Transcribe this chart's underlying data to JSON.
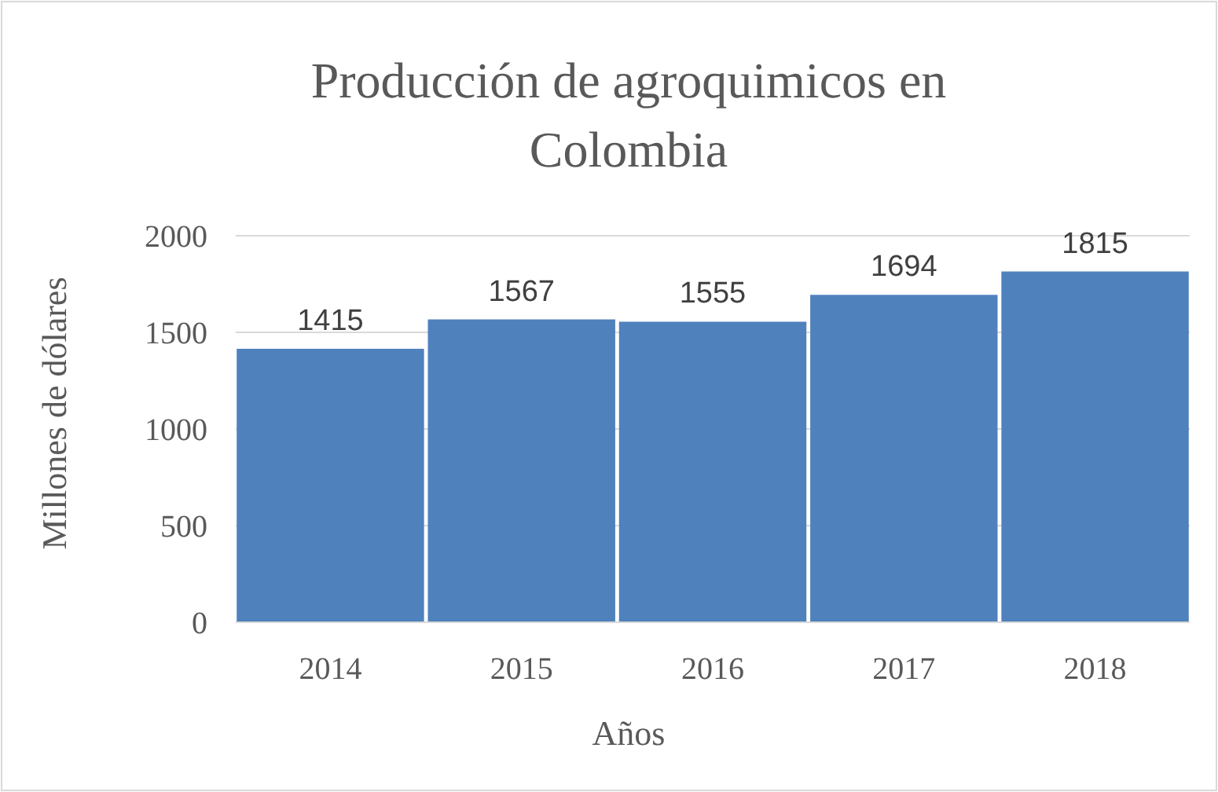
{
  "chart_data": {
    "type": "bar",
    "title": "Producción de agroquimicos en Colombia",
    "xlabel": "Años",
    "ylabel": "Millones de dólares",
    "categories": [
      "2014",
      "2015",
      "2016",
      "2017",
      "2018"
    ],
    "values": [
      1415,
      1567,
      1555,
      1694,
      1815
    ],
    "color": "#4f81bd",
    "ylim": [
      0,
      2000
    ],
    "yticks": [
      0,
      500,
      1000,
      1500,
      2000
    ],
    "grid": "y",
    "data_labels": true
  }
}
